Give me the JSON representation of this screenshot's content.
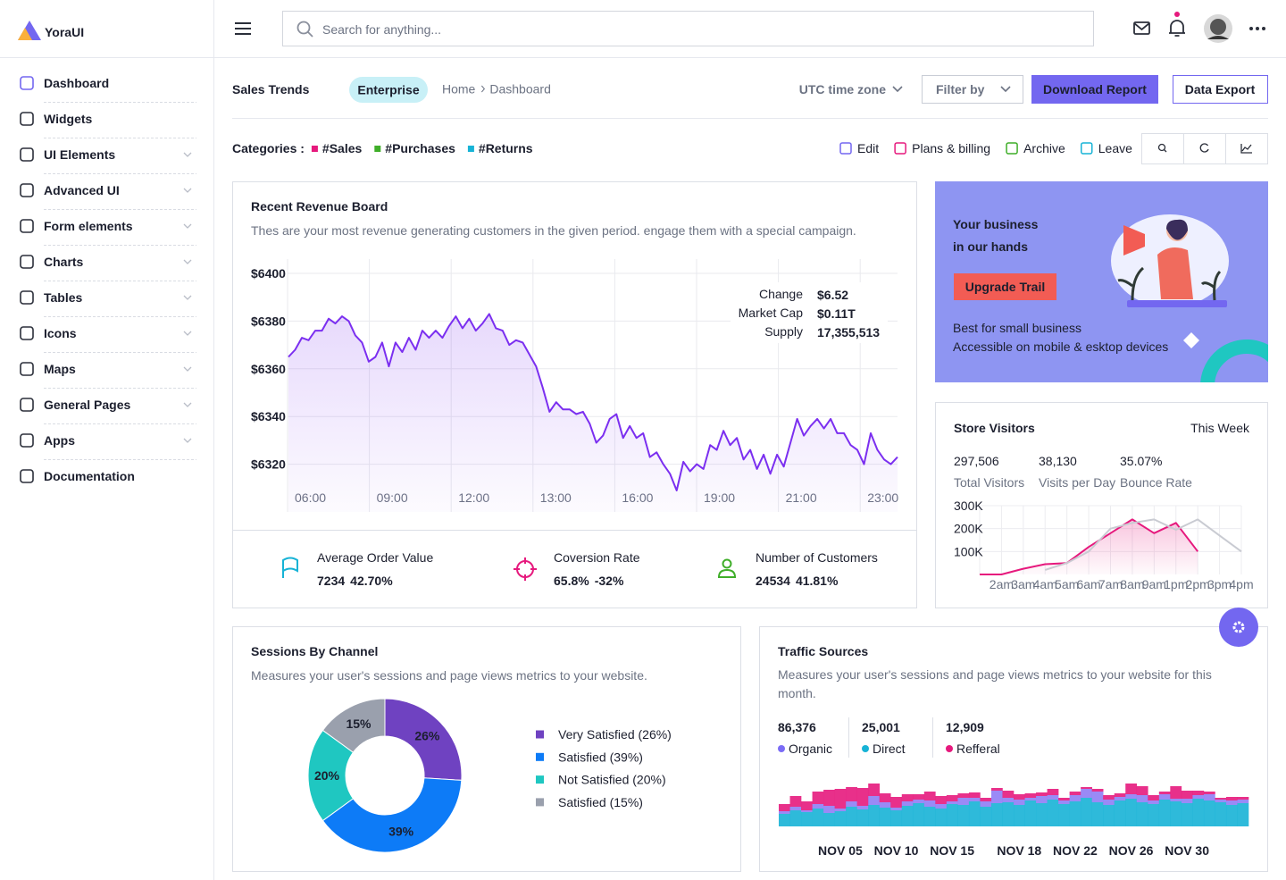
{
  "brand": "YoraUI",
  "search_placeholder": "Search for anything...",
  "sidebar": {
    "active": 0,
    "items": [
      {
        "label": "Dashboard",
        "expandable": false
      },
      {
        "label": "Widgets",
        "expandable": false
      },
      {
        "label": "UI Elements",
        "expandable": true
      },
      {
        "label": "Advanced UI",
        "expandable": true
      },
      {
        "label": "Form elements",
        "expandable": true
      },
      {
        "label": "Charts",
        "expandable": true
      },
      {
        "label": "Tables",
        "expandable": true
      },
      {
        "label": "Icons",
        "expandable": true
      },
      {
        "label": "Maps",
        "expandable": true
      },
      {
        "label": "General Pages",
        "expandable": true
      },
      {
        "label": "Apps",
        "expandable": true
      },
      {
        "label": "Documentation",
        "expandable": false
      }
    ]
  },
  "page_header": {
    "title": "Sales Trends",
    "badge": "Enterprise",
    "breadcrumb": [
      "Home",
      "Dashboard"
    ],
    "timezone": "UTC time zone",
    "filter": "Filter by",
    "primary_button": "Download Report",
    "secondary_button": "Data Export"
  },
  "categories": {
    "label": "Categories :",
    "items": [
      {
        "name": "#Sales",
        "color": "#e6197d"
      },
      {
        "name": "#Purchases",
        "color": "#3fae29"
      },
      {
        "name": "#Returns",
        "color": "#17b3d6"
      }
    ]
  },
  "actions": [
    {
      "label": "Edit",
      "color": "#7367f0"
    },
    {
      "label": "Plans & billing",
      "color": "#e6197d"
    },
    {
      "label": "Archive",
      "color": "#3fae29"
    },
    {
      "label": "Leave",
      "color": "#17b3d6"
    }
  ],
  "revenue_board": {
    "title": "Recent Revenue Board",
    "description": "Thes are your most revenue generating customers in the given period. engage them with a special campaign.",
    "chart": {
      "type": "line",
      "color": "#7b2ff0",
      "grid": true,
      "x_labels": [
        "06:00",
        "09:00",
        "12:00",
        "13:00",
        "16:00",
        "19:00",
        "21:00",
        "23:00"
      ],
      "ylim": [
        6300,
        6406
      ],
      "yticks": [
        {
          "value": 6320,
          "label": "$6320"
        },
        {
          "value": 6340,
          "label": "$6340"
        },
        {
          "value": 6360,
          "label": "$6360"
        },
        {
          "value": 6380,
          "label": "$6380"
        },
        {
          "value": 6400,
          "label": "$6400"
        }
      ],
      "values": [
        6365,
        6368,
        6373,
        6372,
        6376,
        6376,
        6381,
        6379,
        6382,
        6380,
        6374,
        6371,
        6363,
        6365,
        6371,
        6361,
        6371,
        6367,
        6373,
        6368,
        6376,
        6373,
        6376,
        6373,
        6378,
        6382,
        6377,
        6381,
        6376,
        6379,
        6383,
        6377,
        6376,
        6370,
        6372,
        6371,
        6366,
        6361,
        6352,
        6342,
        6346,
        6343,
        6343,
        6341,
        6342,
        6337,
        6329,
        6332,
        6339,
        6341,
        6331,
        6336,
        6331,
        6333,
        6323,
        6325,
        6320,
        6316,
        6309,
        6321,
        6317,
        6320,
        6318,
        6328,
        6326,
        6334,
        6328,
        6331,
        6322,
        6326,
        6318,
        6324,
        6316,
        6324,
        6319,
        6329,
        6339,
        6332,
        6336,
        6339,
        6335,
        6339,
        6333,
        6333,
        6328,
        6326,
        6320,
        6333,
        6326,
        6322,
        6320,
        6323
      ]
    },
    "info": [
      {
        "label": "Change",
        "value": "$6.52"
      },
      {
        "label": "Market Cap",
        "value": "$0.11T"
      },
      {
        "label": "Supply",
        "value": "17,355,513"
      }
    ],
    "stats": [
      {
        "label": "Average Order Value",
        "value": "7234",
        "change": "42.70%",
        "color": "#17b3d6"
      },
      {
        "label": "Coversion Rate",
        "value": "65.8%",
        "change": "-32%",
        "color": "#e6197d"
      },
      {
        "label": "Number of Customers",
        "value": "24534",
        "change": "41.81%",
        "color": "#3fae29"
      }
    ]
  },
  "promo": {
    "title": [
      "Your business",
      "in our hands"
    ],
    "button": "Upgrade Trail",
    "lines": [
      "Best for small business",
      "Accessible on mobile & esktop devices"
    ]
  },
  "store_visitors": {
    "title": "Store Visitors",
    "period": "This Week",
    "stats": [
      {
        "value": "297,506",
        "label": "Total Visitors"
      },
      {
        "value": "38,130",
        "label": "Visits per Day"
      },
      {
        "value": "35.07%",
        "label": "Bounce Rate"
      }
    ],
    "chart": {
      "type": "line",
      "grid": true,
      "categories": [
        null,
        "2am",
        "3am",
        "4am",
        "5am",
        "6am",
        "7am",
        "8am",
        "9am",
        "1pm",
        "2pm",
        "3pm",
        "4pm"
      ],
      "ylim": [
        0,
        300000
      ],
      "yticks": [
        {
          "value": 100000,
          "label": "100K"
        },
        {
          "value": 200000,
          "label": "200K"
        },
        {
          "value": 300000,
          "label": "300K"
        }
      ],
      "series": [
        {
          "color": "#e6197d",
          "fill": true,
          "values": [
            0,
            0,
            25000,
            45000,
            50000,
            120000,
            180000,
            240000,
            180000,
            225000,
            100000,
            null,
            null
          ]
        },
        {
          "color": "#c9cbd2",
          "fill": false,
          "values": [
            null,
            null,
            null,
            20000,
            50000,
            100000,
            200000,
            225000,
            240000,
            195000,
            240000,
            170000,
            100000
          ]
        }
      ]
    }
  },
  "sessions": {
    "title": "Sessions By Channel",
    "description": "Measures your user's sessions and page views metrics to your website.",
    "chart": {
      "type": "pie",
      "donut": true,
      "categories": [
        "Very Satisfied (26%)",
        "Satisfied (39%)",
        "Not Satisfied (20%)",
        "Satisfied (15%)"
      ],
      "values": [
        26,
        39,
        20,
        15
      ],
      "value_labels": [
        "26%",
        "39%",
        "20%",
        "15%"
      ],
      "colors": [
        "#6f42c1",
        "#0d7bf7",
        "#1fc7c1",
        "#9aa0ad"
      ]
    }
  },
  "traffic": {
    "title": "Traffic Sources",
    "description": "Measures your user's sessions and page views metrics to your website for this month.",
    "stats": [
      {
        "value": "86,376",
        "label": "Organic",
        "color": "#7b6cf6"
      },
      {
        "value": "25,001",
        "label": "Direct",
        "color": "#17b3d6"
      },
      {
        "value": "12,909",
        "label": "Refferal",
        "color": "#e6197d"
      }
    ],
    "chart": {
      "type": "bar",
      "stacked": true,
      "ylim": [
        0,
        55
      ],
      "categories": [
        null,
        null,
        null,
        null,
        null,
        "NOV 05",
        null,
        null,
        null,
        null,
        "NOV 10",
        null,
        null,
        null,
        null,
        "NOV 15",
        null,
        null,
        null,
        null,
        null,
        "NOV 18",
        null,
        null,
        null,
        null,
        "NOV 22",
        null,
        null,
        null,
        null,
        "NOV 26",
        null,
        null,
        null,
        null,
        "NOV 30",
        null,
        null,
        null,
        null,
        null
      ],
      "series": [
        {
          "color": "#17b3d6",
          "values": [
            14,
            18,
            16,
            20,
            15,
            17,
            22,
            19,
            24,
            21,
            18,
            23,
            26,
            22,
            20,
            25,
            24,
            28,
            22,
            26,
            27,
            24,
            29,
            26,
            30,
            25,
            28,
            32,
            27,
            24,
            29,
            31,
            27,
            25,
            30,
            28,
            26,
            31,
            29,
            27,
            24,
            26
          ]
        },
        {
          "color": "#8f7df5",
          "values": [
            3,
            4,
            2,
            5,
            8,
            3,
            6,
            4,
            10,
            6,
            3,
            5,
            4,
            7,
            5,
            3,
            8,
            4,
            6,
            14,
            5,
            6,
            3,
            8,
            5,
            4,
            7,
            10,
            12,
            6,
            4,
            5,
            8,
            4,
            6,
            3,
            5,
            4,
            7,
            3,
            5,
            4
          ]
        },
        {
          "color": "#e6197d",
          "values": [
            8,
            12,
            10,
            14,
            18,
            22,
            16,
            20,
            14,
            10,
            12,
            8,
            6,
            10,
            9,
            7,
            5,
            6,
            4,
            3,
            8,
            6,
            5,
            4,
            7,
            3,
            4,
            2,
            3,
            5,
            4,
            12,
            10,
            6,
            3,
            14,
            9,
            5,
            3,
            2,
            4,
            3
          ]
        }
      ]
    }
  }
}
